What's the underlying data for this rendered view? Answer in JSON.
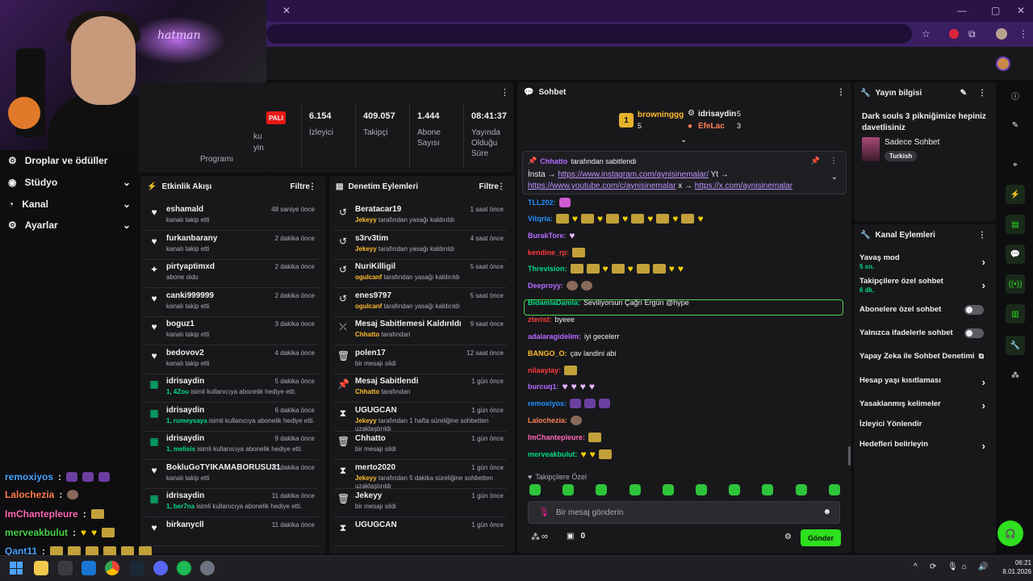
{
  "browser": {
    "tab_plus": "+"
  },
  "leftnav": [
    {
      "label": "Droplar ve ödüller",
      "icon": "drops-icon",
      "chev": ""
    },
    {
      "label": "Stüdyo",
      "icon": "studio-icon",
      "chev": "⌄"
    },
    {
      "label": "Kanal",
      "icon": "channel-icon",
      "chev": "⌄"
    },
    {
      "label": "Ayarlar",
      "icon": "settings-icon",
      "chev": "⌄"
    }
  ],
  "stats": {
    "badge": "PALI",
    "partial_labels": [
      "ku",
      "yin",
      "Programı"
    ],
    "items": [
      {
        "value": "6.154",
        "label": "İzleyici"
      },
      {
        "value": "409.057",
        "label": "Takipçi"
      },
      {
        "value": "1.444",
        "label": "Abone Sayısı"
      },
      {
        "value": "08:41:37",
        "label": "Yayında Olduğu Süre"
      }
    ]
  },
  "activity": {
    "title": "Etkinlik Akışı",
    "filter": "Filtre",
    "items": [
      {
        "type": "follow",
        "name": "eshamald",
        "time": "48 saniye önce",
        "sub": "kanalı takip etti"
      },
      {
        "type": "follow",
        "name": "furkanbarany",
        "time": "2 dakika önce",
        "sub": "kanalı takip etti"
      },
      {
        "type": "sub",
        "name": "pirtyaptimxd",
        "time": "2 dakika önce",
        "sub": "abone oldu"
      },
      {
        "type": "follow",
        "name": "canki999999",
        "time": "2 dakika önce",
        "sub": "kanalı takip etti"
      },
      {
        "type": "follow",
        "name": "boguz1",
        "time": "3 dakika önce",
        "sub": "kanalı takip etti"
      },
      {
        "type": "follow",
        "name": "bedovov2",
        "time": "4 dakika önce",
        "sub": "kanalı takip etti"
      },
      {
        "type": "gift",
        "name": "idrisaydin",
        "time": "5 dakika önce",
        "hl": "1, 4Zou",
        "sub": " isimli kullanıcıya abonelik hediye etti."
      },
      {
        "type": "gift",
        "name": "idrisaydin",
        "time": "6 dakika önce",
        "hl": "1, rumeysaya",
        "sub": " isimli kullanıcıya abonelik hediye etti."
      },
      {
        "type": "gift",
        "name": "idrisaydin",
        "time": "9 dakika önce",
        "hl": "1, melisis",
        "sub": " isimli kullanıcıya abonelik hediye etti."
      },
      {
        "type": "follow",
        "name": "BokluGoTYIKAMABORUSU31",
        "time": "10 dakika önce",
        "sub": "kanalı takip etti"
      },
      {
        "type": "gift",
        "name": "idrisaydin",
        "time": "11 dakika önce",
        "hl": "1, ber7na",
        "sub": " isimli kullanıcıya abonelik hediye etti."
      },
      {
        "type": "follow",
        "name": "birkanycll",
        "time": "11 dakika önce",
        "sub": ""
      }
    ]
  },
  "mod": {
    "title": "Denetim Eylemleri",
    "filter": "Filtre",
    "items": [
      {
        "icon": "undo-icon",
        "glyph": "↺",
        "name": "Beratacar19",
        "time": "1 saat önce",
        "hl": "Jekeyy",
        "sub": " tarafından yasağı kaldırıldı"
      },
      {
        "icon": "undo-icon",
        "glyph": "↺",
        "name": "s3rv3tim",
        "time": "4 saat önce",
        "hl": "Jekeyy",
        "sub": " tarafından yasağı kaldırıldı"
      },
      {
        "icon": "undo-icon",
        "glyph": "↺",
        "name": "NuriKilligil",
        "time": "5 saat önce",
        "hl": "ogulcanf",
        "sub": " tarafından yasağı kaldırıldı"
      },
      {
        "icon": "undo-icon",
        "glyph": "↺",
        "name": "enes9797",
        "time": "5 saat önce",
        "hl": "ogulcanf",
        "sub": " tarafından yasağı kaldırıldı"
      },
      {
        "icon": "unpin-icon",
        "glyph": "⤫",
        "name": "Mesaj Sabitlemesi Kaldırıldı",
        "time": "9 saat önce",
        "hl": "Chhatto",
        "sub": " tarafından"
      },
      {
        "icon": "trash-icon",
        "glyph": "🗑",
        "name": "polen17",
        "time": "12 saat önce",
        "hl": "",
        "sub": "bir mesajı sildi"
      },
      {
        "icon": "pin-icon",
        "glyph": "📌",
        "name": "Mesaj Sabitlendi",
        "time": "1 gün önce",
        "hl": "Chhatto",
        "sub": " tarafından"
      },
      {
        "icon": "timeout-icon",
        "glyph": "⧗",
        "name": "UGUGCAN",
        "time": "1 gün önce",
        "hl": "Jekeyy",
        "sub": " tarafından 1 hafta süreliğine sohbetten uzaklaştırıldı"
      },
      {
        "icon": "trash-icon",
        "glyph": "🗑",
        "name": "Chhatto",
        "time": "1 gün önce",
        "hl": "",
        "sub": "bir mesajı sildi"
      },
      {
        "icon": "timeout-icon",
        "glyph": "⧗",
        "name": "merto2020",
        "time": "1 gün önce",
        "hl": "Jekeyy",
        "sub": " tarafından 5 dakika süreliğine sohbetten uzaklaştırıldı"
      },
      {
        "icon": "trash-icon",
        "glyph": "🗑",
        "name": "Jekeyy",
        "time": "1 gün önce",
        "hl": "",
        "sub": "bir mesajı sildi"
      },
      {
        "icon": "timeout-icon",
        "glyph": "⧗",
        "name": "UGUGCAN",
        "time": "1 gün önce",
        "hl": "",
        "sub": ""
      }
    ]
  },
  "chat": {
    "title": "Sohbet",
    "leaderboard": [
      {
        "rank": "1",
        "name": "browninggg",
        "count": "5"
      },
      {
        "rank": "",
        "name": "idrisaydin",
        "count": "5"
      },
      {
        "rank": "",
        "name": "EfeLac",
        "count": "3"
      }
    ],
    "pinned": {
      "by": "Chhatto",
      "by_suffix": "tarafından sabitlendi",
      "line1_prefix": "İnsta →",
      "link1": "https://www.instagram.com/aynisinemalar/",
      "line1_suffix": "Yt →",
      "link2": "https://www.youtube.com/c/aynisinemalar",
      "mid": "x →",
      "link3": "https://x.com/aynisinemalar"
    },
    "messages": [
      {
        "user": "TLL202:",
        "color": "#1e90ff",
        "text": "",
        "emotes": "p"
      },
      {
        "user": "Vitqria:",
        "color": "#1e90ff",
        "text": "",
        "emotes": "khkhkhkhkhkh"
      },
      {
        "user": "BurakTore:",
        "color": "#b36bff",
        "text": "",
        "emotes": "P"
      },
      {
        "user": "kendine_rp:",
        "color": "#ff3b3b",
        "text": "",
        "emotes": "k"
      },
      {
        "user": "Threvision:",
        "color": "#00db84",
        "text": "",
        "emotes": "kkhkhkkhh"
      },
      {
        "user": "Deeproyy:",
        "color": "#b36bff",
        "text": "",
        "emotes": "ff"
      },
      {
        "user": "BidamlaDamla:",
        "color": "#00db84",
        "text": "Seviliyorsun Çağrı Ergün @hype"
      },
      {
        "user": "zterist:",
        "color": "#ff3b3b",
        "text": "byeee"
      },
      {
        "user": "adalaragidelim:",
        "color": "#b36bff",
        "text": "iyi gecelerr"
      },
      {
        "user": "BANGO_O:",
        "color": "#ffbd2e",
        "text": "çav landini abi"
      },
      {
        "user": "nilaaylay:",
        "color": "#ff3b3b",
        "text": "",
        "emotes": "k"
      },
      {
        "user": "burcuq1:",
        "color": "#b36bff",
        "text": "",
        "emotes": "PPPP"
      },
      {
        "user": "remoxiyos:",
        "color": "#1e90ff",
        "text": "",
        "emotes": "ccc"
      },
      {
        "user": "Lalochezia:",
        "color": "#ff7f50",
        "text": "",
        "emotes": "f"
      },
      {
        "user": "ImChantepleure:",
        "color": "#ff69b4",
        "text": "",
        "emotes": "k"
      },
      {
        "user": "merveakbulut:",
        "color": "#00db84",
        "text": "",
        "emotes": "hhk"
      }
    ],
    "followers_only": "Takipçilere Özel",
    "input_placeholder": "Bir mesaj gönderin",
    "points": "∞",
    "count": "0",
    "send": "Gönder"
  },
  "info": {
    "title": "Yayın bilgisi",
    "stream_title": "Dark souls 3 pikniğimize hepiniz davetlisiniz",
    "category": "Sadece Sohbet",
    "tag": "Turkish"
  },
  "actions": {
    "title": "Kanal Eylemleri",
    "rows": [
      {
        "label": "Yavaş mod",
        "value": "5 sn.",
        "ctl": "chev"
      },
      {
        "label": "Takipçilere özel sohbet",
        "value": "6 dk.",
        "ctl": "chev"
      },
      {
        "label": "Abonelere özel sohbet",
        "value": "",
        "ctl": "toggle"
      },
      {
        "label": "Yalnızca ifadelerle sohbet",
        "value": "",
        "ctl": "toggle"
      },
      {
        "label": "Yapay Zeka ile Sohbet Denetimi",
        "value": "",
        "ctl": "ext"
      },
      {
        "label": "Hesap yaşı kısıtlaması",
        "value": "",
        "ctl": "chev"
      },
      {
        "label": "Yasaklanmış kelimeler",
        "value": "",
        "ctl": "chev"
      },
      {
        "label": "İzleyici Yönlendir",
        "value": "",
        "ctl": ""
      },
      {
        "label": "Hedefleri belirleyin",
        "value": "",
        "ctl": "chev"
      }
    ]
  },
  "overlay": [
    {
      "user": "remoxiyos",
      "color": "#4aa3ff"
    },
    {
      "user": "Lalochezia",
      "color": "#ff7f50"
    },
    {
      "user": "ImChantepleure",
      "color": "#ff69b4"
    },
    {
      "user": "merveakbulut",
      "color": "#4ad24a"
    },
    {
      "user": "Qant11",
      "color": "#4aa3ff"
    }
  ],
  "clock": {
    "time": "06:21",
    "date": "8.01.2026"
  }
}
